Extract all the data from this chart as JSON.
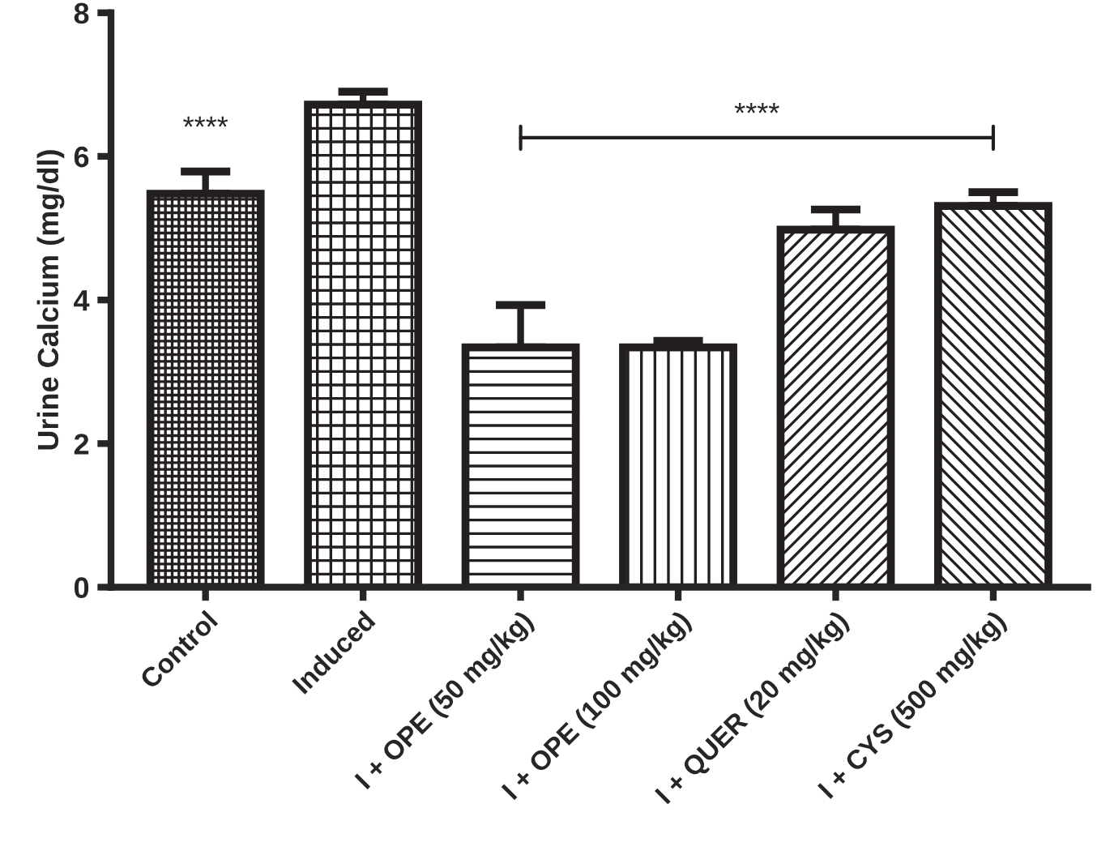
{
  "chart_data": {
    "type": "bar",
    "ylabel": "Urine Calcium (mg/dl)",
    "categories": [
      "Control",
      "Induced",
      "I + OPE (50 mg/kg)",
      "I + OPE (100 mg/kg)",
      "I + QUER (20 mg/kg)",
      "I + CYS (500 mg/kg)"
    ],
    "values": [
      5.48,
      6.72,
      3.34,
      3.34,
      4.98,
      5.31
    ],
    "errors": [
      0.31,
      0.18,
      0.59,
      0.09,
      0.28,
      0.19
    ],
    "color": "#231f20",
    "ylim": [
      0,
      8
    ],
    "yticks": [
      0,
      2,
      4,
      6,
      8
    ],
    "grid": false,
    "annotations": [
      "****",
      "****"
    ]
  }
}
